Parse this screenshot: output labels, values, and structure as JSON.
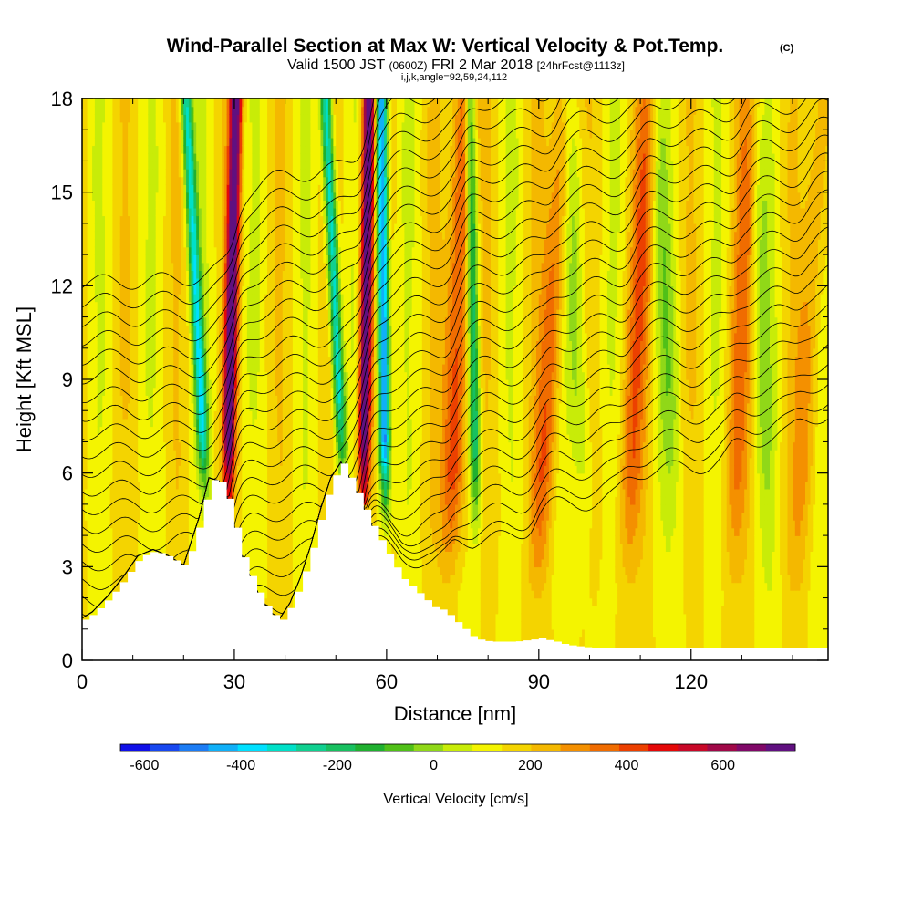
{
  "chart_data": {
    "type": "heatmap",
    "title": "Wind-Parallel Section at Max W: Vertical Velocity & Pot.Temp.",
    "title_mark": "(C)",
    "subtitle": {
      "valid_prefix": "Valid 1500 JST",
      "utc": "(0600Z)",
      "date": "FRI 2 Mar 2018",
      "forecast": "[24hrFcst@1113z]"
    },
    "grid_info": "i,j,k,angle=92,59,24,112",
    "xlabel": "Distance [nm]",
    "ylabel": "Height [Kft MSL]",
    "xlim": [
      0,
      147
    ],
    "ylim": [
      0,
      18
    ],
    "x_ticks": [
      0,
      30,
      60,
      90,
      120
    ],
    "y_ticks": [
      0,
      3,
      6,
      9,
      12,
      15,
      18
    ],
    "terrain": {
      "x": [
        0,
        2,
        5,
        8,
        11,
        14,
        17,
        20,
        23,
        25,
        27,
        29,
        31,
        33,
        35,
        37,
        39,
        41,
        43,
        45,
        47,
        49,
        51,
        53,
        55,
        57,
        59,
        61,
        63,
        65,
        67,
        69,
        71,
        73,
        75,
        77,
        80,
        85,
        90,
        93,
        95,
        100,
        110,
        120,
        130,
        140,
        147
      ],
      "height": [
        1.3,
        1.5,
        2.0,
        2.6,
        3.3,
        3.5,
        3.3,
        3.0,
        4.5,
        5.8,
        5.7,
        5.0,
        3.5,
        2.7,
        2.0,
        1.5,
        1.3,
        1.8,
        2.6,
        3.6,
        4.8,
        5.8,
        6.3,
        5.7,
        5.0,
        4.3,
        3.7,
        3.1,
        2.6,
        2.3,
        2.0,
        1.7,
        1.6,
        1.3,
        1.0,
        0.7,
        0.6,
        0.6,
        0.7,
        0.6,
        0.5,
        0.4,
        0.4,
        0.4,
        0.4,
        0.4,
        0.4
      ]
    },
    "vertical_velocity_colorbar": {
      "label": "Vertical Velocity [cm/s]",
      "tick_labels": [
        "-600",
        "-400",
        "-200",
        "0",
        "200",
        "400",
        "600"
      ],
      "tick_values": [
        -600,
        -400,
        -200,
        0,
        200,
        400,
        600
      ],
      "range": [
        -650,
        700
      ],
      "step": 50
    },
    "updraft_bands": [
      {
        "x_base": 28.0,
        "x_top": 30.3,
        "wmax": 520
      },
      {
        "x_base": 55.0,
        "x_top": 56.5,
        "wmax": 560
      },
      {
        "x_base": 72.0,
        "x_top": 75.5,
        "wmax": 260
      },
      {
        "x_base": 89.0,
        "x_top": 95.0,
        "wmax": 180
      },
      {
        "x_base": 106.0,
        "x_top": 112.0,
        "wmax": 170
      },
      {
        "x_base": 127.0,
        "x_top": 132.0,
        "wmax": 140
      },
      {
        "x_base": 140.0,
        "x_top": 146.0,
        "wmax": 120
      }
    ],
    "downdraft_bands": [
      {
        "x_base": 26.0,
        "x_top": 20.5,
        "wmin": -380
      },
      {
        "x_base": 53.0,
        "x_top": 48.0,
        "wmin": -420
      },
      {
        "x_base": 60.0,
        "x_top": 59.0,
        "wmin": -560
      },
      {
        "x_base": 78.0,
        "x_top": 76.5,
        "wmin": -330
      },
      {
        "x_base": 100.0,
        "x_top": 96.0,
        "wmin": -120
      },
      {
        "x_base": 118.0,
        "x_top": 113.0,
        "wmin": -100
      },
      {
        "x_base": 136.0,
        "x_top": 132.5,
        "wmin": -90
      }
    ],
    "colors": {
      "background": "#ffffff",
      "terrain_fill": "#ffffff",
      "isentrope_color": "#000000"
    }
  }
}
